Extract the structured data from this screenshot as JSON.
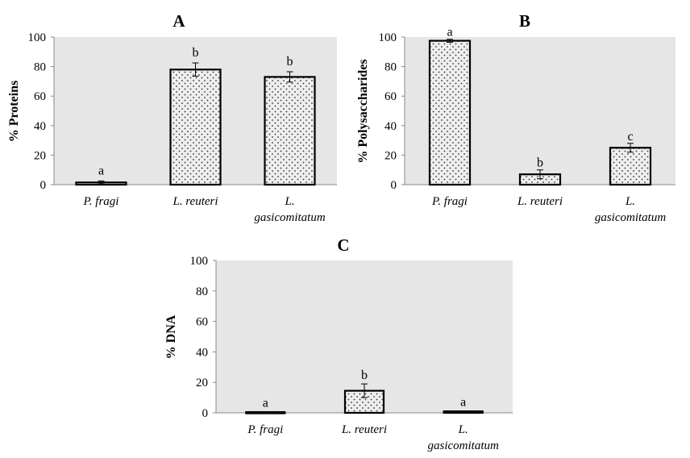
{
  "chart_data": [
    {
      "type": "bar",
      "title": "A",
      "ylabel": "% Proteins",
      "ylim": [
        0,
        100
      ],
      "yticks": [
        "0",
        "20",
        "40",
        "60",
        "80",
        "100"
      ],
      "categories": [
        [
          "P. fragi"
        ],
        [
          "L. reuteri"
        ],
        [
          "L.",
          "gasicomitatum"
        ]
      ],
      "values": [
        1.5,
        78,
        73
      ],
      "errors": [
        1,
        4.5,
        3.5
      ],
      "significance": [
        "a",
        "b",
        "b"
      ]
    },
    {
      "type": "bar",
      "title": "B",
      "ylabel": "% Polysaccharides",
      "ylim": [
        0,
        100
      ],
      "yticks": [
        "0",
        "20",
        "40",
        "60",
        "80",
        "100"
      ],
      "categories": [
        [
          "P. fragi"
        ],
        [
          "L. reuteri"
        ],
        [
          "L.",
          "gasicomitatum"
        ]
      ],
      "values": [
        97.5,
        7,
        25
      ],
      "errors": [
        1,
        3,
        3
      ],
      "significance": [
        "a",
        "b",
        "c"
      ]
    },
    {
      "type": "bar",
      "title": "C",
      "ylabel": "% DNA",
      "ylim": [
        0,
        100
      ],
      "yticks": [
        "0",
        "20",
        "40",
        "60",
        "80",
        "100"
      ],
      "categories": [
        [
          "P. fragi"
        ],
        [
          "L. reuteri"
        ],
        [
          "L.",
          "gasicomitatum"
        ]
      ],
      "values": [
        0.5,
        14.5,
        1
      ],
      "errors": [
        0.3,
        4.5,
        0.3
      ],
      "significance": [
        "a",
        "b",
        "a"
      ]
    }
  ]
}
